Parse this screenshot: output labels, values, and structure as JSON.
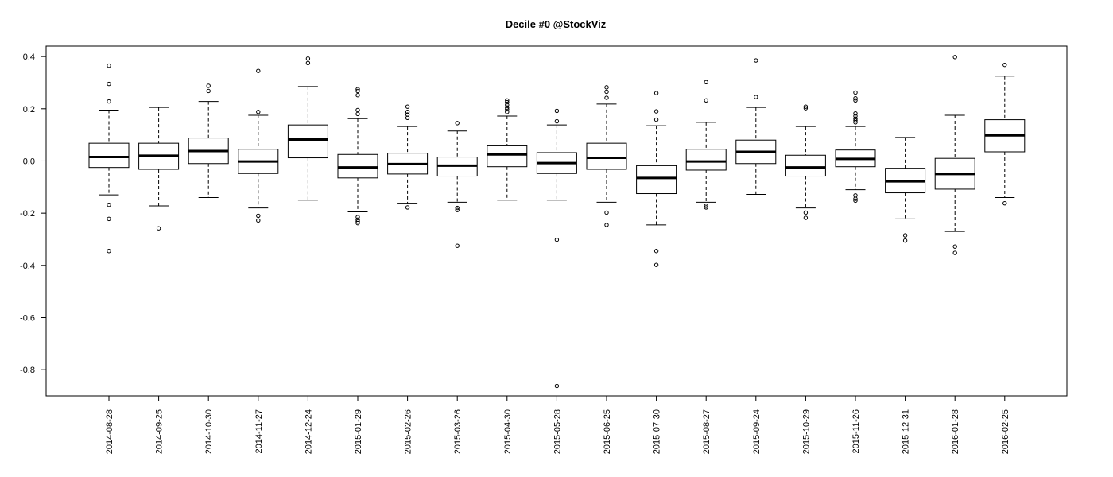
{
  "chart_data": {
    "type": "boxplot",
    "title": "Decile #0 @StockViz",
    "xlabel": "",
    "ylabel": "",
    "ylim": [
      -0.9,
      0.44
    ],
    "yticks": [
      0.4,
      0.2,
      0.0,
      -0.2,
      -0.4,
      -0.6,
      -0.8
    ],
    "ytick_labels": [
      "0.4",
      "0.2",
      "0.0",
      "-0.2",
      "-0.4",
      "-0.6",
      "-0.8"
    ],
    "grid": false,
    "legend": "none",
    "categories": [
      "2014-08-28",
      "2014-09-25",
      "2014-10-30",
      "2014-11-27",
      "2014-12-24",
      "2015-01-29",
      "2015-02-26",
      "2015-03-26",
      "2015-04-30",
      "2015-05-28",
      "2015-06-25",
      "2015-07-30",
      "2015-08-27",
      "2015-09-24",
      "2015-10-29",
      "2015-11-26",
      "2015-12-31",
      "2016-01-28",
      "2016-02-25"
    ],
    "boxes": [
      {
        "min": -0.13,
        "q1": -0.025,
        "median": 0.015,
        "q3": 0.068,
        "max": 0.195,
        "outliers": [
          0.365,
          0.295,
          0.228,
          -0.168,
          -0.222,
          -0.345
        ]
      },
      {
        "min": -0.172,
        "q1": -0.032,
        "median": 0.02,
        "q3": 0.068,
        "max": 0.205,
        "outliers": [
          -0.258
        ]
      },
      {
        "min": -0.14,
        "q1": -0.01,
        "median": 0.038,
        "q3": 0.088,
        "max": 0.228,
        "outliers": [
          0.288,
          0.268
        ]
      },
      {
        "min": -0.18,
        "q1": -0.048,
        "median": -0.002,
        "q3": 0.045,
        "max": 0.175,
        "outliers": [
          0.345,
          0.188,
          -0.21,
          -0.228
        ]
      },
      {
        "min": -0.15,
        "q1": 0.012,
        "median": 0.082,
        "q3": 0.138,
        "max": 0.285,
        "outliers": [
          0.392,
          0.375
        ]
      },
      {
        "min": -0.195,
        "q1": -0.065,
        "median": -0.025,
        "q3": 0.025,
        "max": 0.162,
        "outliers": [
          0.275,
          0.268,
          0.252,
          0.195,
          0.18,
          -0.215,
          -0.225,
          -0.232,
          -0.238
        ]
      },
      {
        "min": -0.162,
        "q1": -0.05,
        "median": -0.012,
        "q3": 0.03,
        "max": 0.132,
        "outliers": [
          0.208,
          0.188,
          0.178,
          0.165,
          -0.178
        ]
      },
      {
        "min": -0.158,
        "q1": -0.058,
        "median": -0.018,
        "q3": 0.015,
        "max": 0.115,
        "outliers": [
          0.145,
          -0.18,
          -0.188,
          -0.325
        ]
      },
      {
        "min": -0.15,
        "q1": -0.022,
        "median": 0.025,
        "q3": 0.058,
        "max": 0.172,
        "outliers": [
          0.232,
          0.225,
          0.215,
          0.205,
          0.198,
          0.188
        ]
      },
      {
        "min": -0.15,
        "q1": -0.048,
        "median": -0.008,
        "q3": 0.032,
        "max": 0.138,
        "outliers": [
          0.192,
          0.152,
          -0.302,
          -0.862
        ]
      },
      {
        "min": -0.158,
        "q1": -0.032,
        "median": 0.012,
        "q3": 0.068,
        "max": 0.218,
        "outliers": [
          0.282,
          0.265,
          0.242,
          -0.198,
          -0.245
        ]
      },
      {
        "min": -0.245,
        "q1": -0.125,
        "median": -0.065,
        "q3": -0.018,
        "max": 0.135,
        "outliers": [
          0.26,
          0.19,
          0.158,
          -0.345,
          -0.398
        ]
      },
      {
        "min": -0.158,
        "q1": -0.035,
        "median": -0.002,
        "q3": 0.045,
        "max": 0.148,
        "outliers": [
          0.302,
          0.232,
          -0.172,
          -0.178
        ]
      },
      {
        "min": -0.128,
        "q1": -0.01,
        "median": 0.035,
        "q3": 0.08,
        "max": 0.205,
        "outliers": [
          0.385,
          0.245
        ]
      },
      {
        "min": -0.18,
        "q1": -0.058,
        "median": -0.025,
        "q3": 0.022,
        "max": 0.132,
        "outliers": [
          0.208,
          0.202,
          -0.198,
          -0.218
        ]
      },
      {
        "min": -0.11,
        "q1": -0.022,
        "median": 0.008,
        "q3": 0.042,
        "max": 0.132,
        "outliers": [
          0.262,
          0.24,
          0.232,
          0.182,
          0.172,
          0.162,
          0.155,
          0.148,
          -0.132,
          -0.145,
          -0.152
        ]
      },
      {
        "min": -0.222,
        "q1": -0.122,
        "median": -0.078,
        "q3": -0.028,
        "max": 0.09,
        "outliers": [
          -0.285,
          -0.305
        ]
      },
      {
        "min": -0.27,
        "q1": -0.108,
        "median": -0.05,
        "q3": 0.01,
        "max": 0.175,
        "outliers": [
          0.398,
          -0.328,
          -0.352
        ]
      },
      {
        "min": -0.14,
        "q1": 0.035,
        "median": 0.098,
        "q3": 0.158,
        "max": 0.325,
        "outliers": [
          0.368,
          -0.162
        ]
      }
    ]
  }
}
